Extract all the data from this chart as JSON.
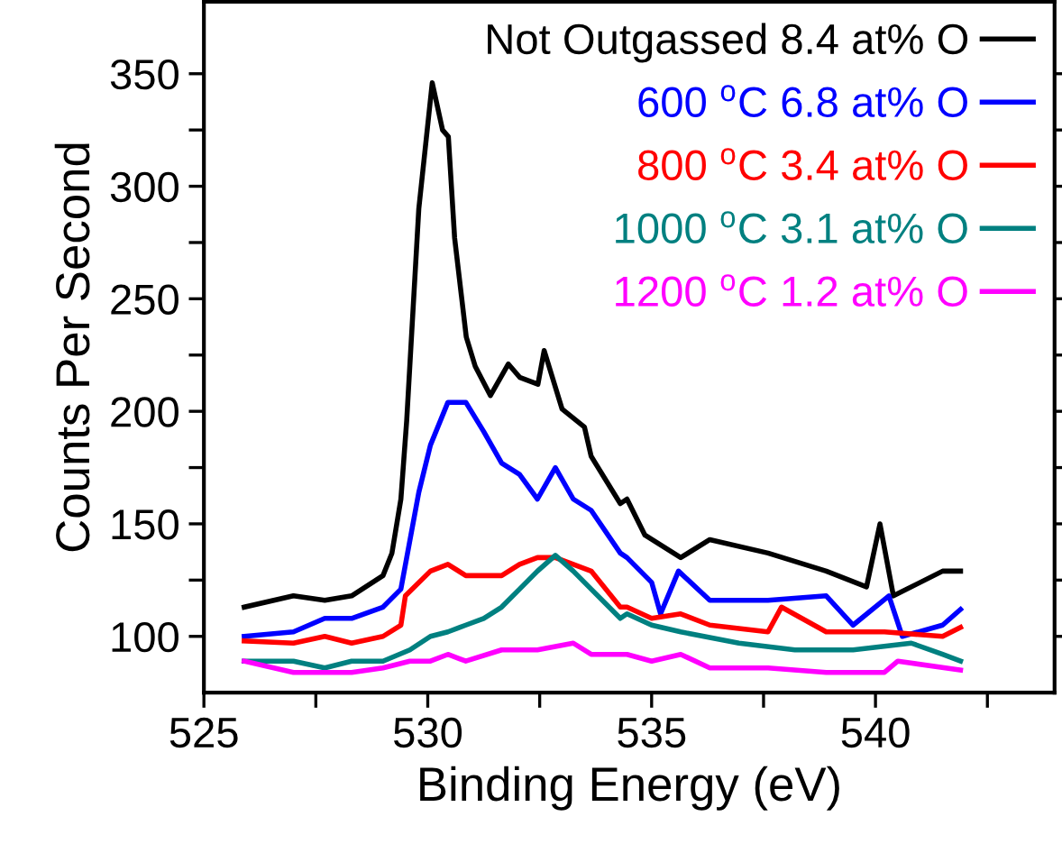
{
  "chart_data": {
    "type": "line",
    "xlabel": "Binding Energy (eV)",
    "ylabel": "Counts Per Second",
    "xlim": [
      525,
      544
    ],
    "ylim": [
      75,
      382
    ],
    "xticks": [
      525,
      {
        "value": 527.5,
        "label": null
      },
      530,
      {
        "value": 532.5,
        "label": null
      },
      535,
      {
        "value": 537.5,
        "label": null
      },
      540,
      {
        "value": 542.5,
        "label": null
      }
    ],
    "yticks": [
      {
        "value": 125,
        "label": null
      },
      100,
      150,
      200,
      250,
      300,
      350,
      {
        "value": 175,
        "label": null
      },
      {
        "value": 225,
        "label": null
      },
      {
        "value": 275,
        "label": null
      },
      {
        "value": 325,
        "label": null
      }
    ],
    "grid": false,
    "legend": "top right",
    "line_style": "solid",
    "marker": "none",
    "series": [
      {
        "name": "Not Outgassed 8.4 at% O",
        "color": "#000000",
        "x": [
          525.9,
          527.0,
          527.7,
          528.3,
          529.0,
          529.2,
          529.4,
          529.53,
          529.8,
          530.1,
          530.33,
          530.46,
          530.6,
          530.86,
          531.06,
          531.4,
          531.8,
          532.06,
          532.46,
          532.6,
          533.0,
          533.5,
          533.65,
          534.3,
          534.45,
          534.85,
          535.65,
          536.3,
          537.6,
          538.9,
          539.8,
          540.1,
          540.4,
          541.5,
          541.9
        ],
        "values": [
          113,
          118,
          116,
          118,
          127,
          137,
          161,
          196,
          290,
          346,
          325,
          322,
          277,
          233,
          220,
          207,
          221,
          215,
          212,
          227,
          201,
          193,
          180,
          159,
          161,
          145,
          135,
          143,
          137,
          129,
          122,
          150,
          118,
          129,
          129
        ]
      },
      {
        "name": "600 $^{o}$C 6.8 at% O",
        "color": "#0000ff",
        "x": [
          525.9,
          527.0,
          527.7,
          528.3,
          529.0,
          529.4,
          529.8,
          530.06,
          530.45,
          530.85,
          531.25,
          531.65,
          532.05,
          532.45,
          532.85,
          533.25,
          533.65,
          534.3,
          534.45,
          535.0,
          535.2,
          535.6,
          536.3,
          537.6,
          538.9,
          539.5,
          540.3,
          540.6,
          541.5,
          541.9
        ],
        "values": [
          100,
          102,
          108,
          108,
          113,
          121,
          164,
          185,
          204,
          204,
          191,
          177,
          172,
          161,
          175,
          161,
          156,
          137,
          135,
          124,
          110,
          129,
          116,
          116,
          118,
          105,
          118,
          100,
          105,
          112
        ]
      },
      {
        "name": "800 $^{o}$C 3.4 at% O",
        "color": "#ff0000",
        "x": [
          525.9,
          527.0,
          527.7,
          528.3,
          529.0,
          529.4,
          529.5,
          530.06,
          530.45,
          530.85,
          531.25,
          531.65,
          532.05,
          532.45,
          532.85,
          533.25,
          533.65,
          534.3,
          534.45,
          535.0,
          535.65,
          536.3,
          537.6,
          537.9,
          538.9,
          540.2,
          541.5,
          541.9
        ],
        "values": [
          98,
          97,
          100,
          97,
          100,
          105,
          118,
          129,
          132,
          127,
          127,
          127,
          132,
          135,
          135,
          132,
          129,
          113,
          113,
          108,
          110,
          105,
          102,
          113,
          102,
          102,
          100,
          104
        ]
      },
      {
        "name": "1000 $^{o}$C 3.1 at% O",
        "color": "#008080",
        "x": [
          525.9,
          527.0,
          527.7,
          528.3,
          529.0,
          529.6,
          530.06,
          530.45,
          530.85,
          531.25,
          531.65,
          532.05,
          532.45,
          532.85,
          533.25,
          533.65,
          534.3,
          534.45,
          535.0,
          535.65,
          536.95,
          538.2,
          539.5,
          540.8,
          541.5,
          541.9
        ],
        "values": [
          89,
          89,
          86,
          89,
          89,
          94,
          100,
          102,
          105,
          108,
          113,
          121,
          129,
          136,
          129,
          121,
          108,
          110,
          105,
          102,
          97,
          94,
          94,
          97,
          92,
          89
        ]
      },
      {
        "name": "1200 $^{o}$C 1.2 at% O",
        "color": "#ff00ff",
        "x": [
          525.9,
          527.0,
          527.7,
          528.3,
          529.0,
          529.6,
          530.06,
          530.45,
          530.85,
          531.65,
          532.45,
          533.25,
          533.65,
          534.3,
          534.45,
          535.0,
          535.65,
          536.3,
          537.6,
          538.9,
          540.2,
          540.5,
          541.9
        ],
        "values": [
          89,
          84,
          84,
          84,
          86,
          89,
          89,
          92,
          89,
          94,
          94,
          97,
          92,
          92,
          92,
          89,
          92,
          86,
          86,
          84,
          84,
          89,
          85
        ]
      }
    ]
  }
}
